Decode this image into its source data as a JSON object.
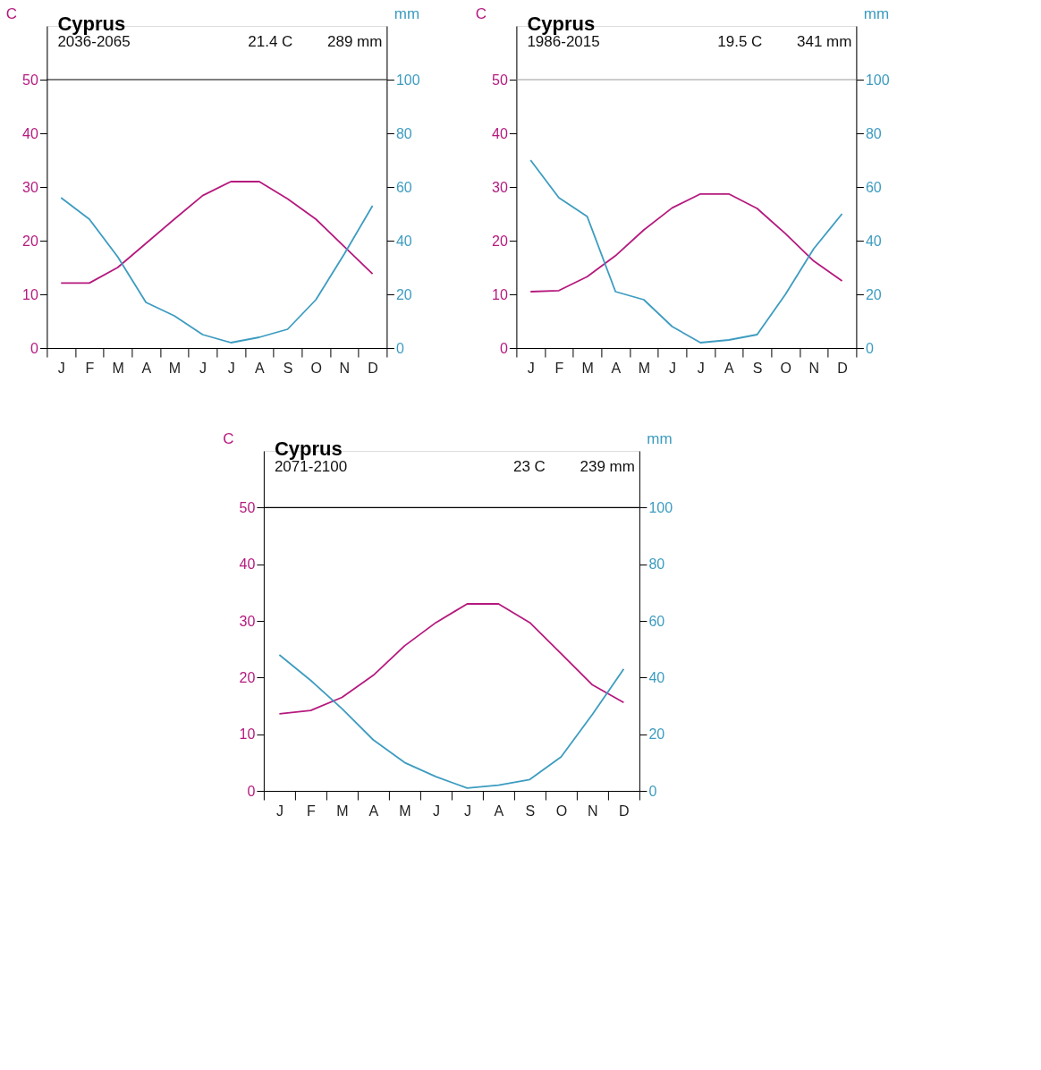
{
  "chart_data": [
    {
      "type": "line",
      "title": "Cyprus",
      "subtitle": "2036-2065",
      "annotations": [
        "21.4 C",
        "289 mm"
      ],
      "ylabel": "C",
      "y2label": "mm",
      "categories": [
        "J",
        "F",
        "M",
        "A",
        "M",
        "J",
        "J",
        "A",
        "S",
        "O",
        "N",
        "D"
      ],
      "series": [
        {
          "color": "#b5197e",
          "values": [
            12.1,
            12.1,
            15.0,
            19.5,
            24.0,
            28.4,
            31.0,
            31.0,
            27.8,
            24.0,
            18.9,
            13.8
          ]
        },
        {
          "color": "#3d9cc0",
          "axis": "y2",
          "values": [
            56,
            48,
            34,
            17,
            12,
            5,
            2,
            4,
            7,
            18,
            35,
            53
          ]
        }
      ],
      "ylim": [
        0,
        60
      ],
      "yticks": [
        0,
        10,
        20,
        30,
        40,
        50
      ],
      "y2lim": [
        0,
        120
      ],
      "y2ticks": [
        0,
        20,
        40,
        60,
        80,
        100
      ],
      "ref_lines": [
        {
          "axis": "y",
          "value": 50,
          "color": "#000000"
        }
      ],
      "grid": false
    },
    {
      "type": "line",
      "title": "Cyprus",
      "subtitle": "1986-2015",
      "annotations": [
        "19.5 C",
        "341 mm"
      ],
      "ylabel": "C",
      "y2label": "mm",
      "categories": [
        "J",
        "F",
        "M",
        "A",
        "M",
        "J",
        "J",
        "A",
        "S",
        "O",
        "N",
        "D"
      ],
      "series": [
        {
          "color": "#b5197e",
          "values": [
            10.5,
            10.7,
            13.3,
            17.2,
            22.0,
            26.1,
            28.7,
            28.7,
            26.0,
            21.3,
            16.2,
            12.5
          ]
        },
        {
          "color": "#3d9cc0",
          "axis": "y2",
          "values": [
            70,
            56,
            49,
            21,
            18,
            8,
            2,
            3,
            5,
            20,
            37,
            50
          ]
        }
      ],
      "ylim": [
        0,
        60
      ],
      "yticks": [
        0,
        10,
        20,
        30,
        40,
        50
      ],
      "y2lim": [
        0,
        120
      ],
      "y2ticks": [
        0,
        20,
        40,
        60,
        80,
        100
      ],
      "ref_lines": [
        {
          "axis": "y",
          "value": 50,
          "color": "#999999"
        }
      ],
      "grid": false
    },
    {
      "type": "line",
      "title": "Cyprus",
      "subtitle": "2071-2100",
      "annotations": [
        "23 C",
        "239 mm"
      ],
      "ylabel": "C",
      "y2label": "mm",
      "categories": [
        "J",
        "F",
        "M",
        "A",
        "M",
        "J",
        "J",
        "A",
        "S",
        "O",
        "N",
        "D"
      ],
      "series": [
        {
          "color": "#b5197e",
          "values": [
            13.6,
            14.2,
            16.5,
            20.4,
            25.6,
            29.7,
            33.0,
            33.0,
            29.7,
            24.2,
            18.7,
            15.6
          ]
        },
        {
          "color": "#3d9cc0",
          "axis": "y2",
          "values": [
            48,
            39,
            29,
            18,
            10,
            5,
            1,
            2,
            4,
            12,
            27,
            43
          ]
        }
      ],
      "ylim": [
        0,
        60
      ],
      "yticks": [
        0,
        10,
        20,
        30,
        40,
        50
      ],
      "y2lim": [
        0,
        120
      ],
      "y2ticks": [
        0,
        20,
        40,
        60,
        80,
        100
      ],
      "ref_lines": [
        {
          "axis": "y",
          "value": 50,
          "color": "#000000"
        }
      ],
      "grid": false
    }
  ]
}
